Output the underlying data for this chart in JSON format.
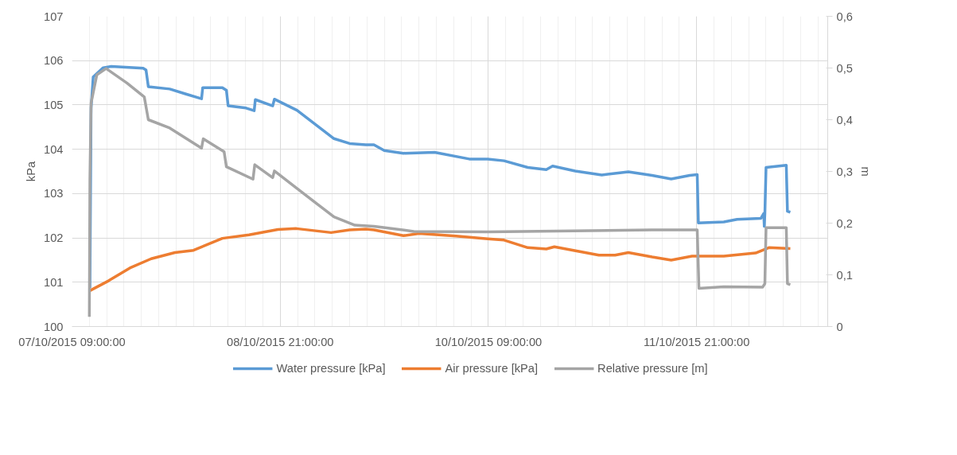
{
  "chart_data": {
    "type": "line",
    "ylabel": "kPa",
    "y2label": "m",
    "grid": true,
    "legend": "bottom",
    "line_style": "solid",
    "marker": "none",
    "xlim": [
      "2015-10-07T09:00",
      "2015-10-12T19:40"
    ],
    "xticks": [
      {
        "value": "2015-10-07T09:00",
        "label": "07/10/2015 09:00:00"
      },
      {
        "value": "2015-10-07T12:00",
        "label": null
      },
      {
        "value": "2015-10-07T15:00",
        "label": null
      },
      {
        "value": "2015-10-07T18:00",
        "label": null
      },
      {
        "value": "2015-10-07T21:00",
        "label": null
      },
      {
        "value": "2015-10-08T00:00",
        "label": null
      },
      {
        "value": "2015-10-08T03:00",
        "label": null
      },
      {
        "value": "2015-10-08T06:00",
        "label": null
      },
      {
        "value": "2015-10-08T09:00",
        "label": null
      },
      {
        "value": "2015-10-08T12:00",
        "label": null
      },
      {
        "value": "2015-10-08T15:00",
        "label": null
      },
      {
        "value": "2015-10-08T18:00",
        "label": null
      },
      {
        "value": "2015-10-08T21:00",
        "label": "08/10/2015 21:00:00"
      },
      {
        "value": "2015-10-09T00:00",
        "label": null
      },
      {
        "value": "2015-10-09T03:00",
        "label": null
      },
      {
        "value": "2015-10-09T06:00",
        "label": null
      },
      {
        "value": "2015-10-09T09:00",
        "label": null
      },
      {
        "value": "2015-10-09T12:00",
        "label": null
      },
      {
        "value": "2015-10-09T15:00",
        "label": null
      },
      {
        "value": "2015-10-09T18:00",
        "label": null
      },
      {
        "value": "2015-10-09T21:00",
        "label": null
      },
      {
        "value": "2015-10-10T00:00",
        "label": null
      },
      {
        "value": "2015-10-10T03:00",
        "label": null
      },
      {
        "value": "2015-10-10T06:00",
        "label": null
      },
      {
        "value": "2015-10-10T09:00",
        "label": "10/10/2015 09:00:00"
      },
      {
        "value": "2015-10-10T12:00",
        "label": null
      },
      {
        "value": "2015-10-10T15:00",
        "label": null
      },
      {
        "value": "2015-10-10T18:00",
        "label": null
      },
      {
        "value": "2015-10-10T21:00",
        "label": null
      },
      {
        "value": "2015-10-11T00:00",
        "label": null
      },
      {
        "value": "2015-10-11T03:00",
        "label": null
      },
      {
        "value": "2015-10-11T06:00",
        "label": null
      },
      {
        "value": "2015-10-11T09:00",
        "label": null
      },
      {
        "value": "2015-10-11T12:00",
        "label": null
      },
      {
        "value": "2015-10-11T15:00",
        "label": null
      },
      {
        "value": "2015-10-11T18:00",
        "label": null
      },
      {
        "value": "2015-10-11T21:00",
        "label": "11/10/2015 21:00:00"
      },
      {
        "value": "2015-10-12T00:00",
        "label": null
      },
      {
        "value": "2015-10-12T03:00",
        "label": null
      },
      {
        "value": "2015-10-12T06:00",
        "label": null
      },
      {
        "value": "2015-10-12T09:00",
        "label": null
      },
      {
        "value": "2015-10-12T12:00",
        "label": null
      },
      {
        "value": "2015-10-12T15:00",
        "label": null
      },
      {
        "value": "2015-10-12T18:00",
        "label": null
      }
    ],
    "ylim": [
      100,
      107
    ],
    "yticks": [
      100,
      101,
      102,
      103,
      104,
      105,
      106,
      107
    ],
    "y2lim": [
      0,
      0.6
    ],
    "y2ticks": [
      0,
      {
        "value": 0.1,
        "label": "0,1"
      },
      {
        "value": 0.2,
        "label": "0,2"
      },
      {
        "value": 0.3,
        "label": "0,3"
      },
      {
        "value": 0.4,
        "label": "0,4"
      },
      {
        "value": 0.5,
        "label": "0,5"
      },
      {
        "value": 0.6,
        "label": "0,6"
      }
    ],
    "series": [
      {
        "name": "Water pressure [kPa]",
        "color": "#5b9bd5",
        "x": [
          "2015-10-07T12:06",
          "2015-10-07T12:18",
          "2015-10-07T12:40",
          "2015-10-07T14:24",
          "2015-10-07T15:48",
          "2015-10-07T21:18",
          "2015-10-07T21:48",
          "2015-10-07T22:12",
          "2015-10-08T01:54",
          "2015-10-08T04:36",
          "2015-10-08T07:24",
          "2015-10-08T07:36",
          "2015-10-08T11:00",
          "2015-10-08T11:42",
          "2015-10-08T12:00",
          "2015-10-08T15:06",
          "2015-10-08T16:30",
          "2015-10-08T16:42",
          "2015-10-08T19:42",
          "2015-10-08T20:00",
          "2015-10-08T23:54",
          "2015-10-09T06:18",
          "2015-10-09T09:00",
          "2015-10-09T11:48",
          "2015-10-09T13:12",
          "2015-10-09T15:00",
          "2015-10-09T18:18",
          "2015-10-09T23:42",
          "2015-10-10T05:42",
          "2015-10-10T08:54",
          "2015-10-10T11:42",
          "2015-10-10T15:48",
          "2015-10-10T19:00",
          "2015-10-10T20:06",
          "2015-10-11T00:00",
          "2015-10-11T04:36",
          "2015-10-11T09:12",
          "2015-10-11T13:18",
          "2015-10-11T16:36",
          "2015-10-11T19:48",
          "2015-10-11T21:06",
          "2015-10-11T21:18",
          "2015-10-12T01:42",
          "2015-10-12T04:00",
          "2015-10-12T08:06",
          "2015-10-12T08:36",
          "2015-10-12T08:42",
          "2015-10-12T08:48",
          "2015-10-12T09:00",
          "2015-10-12T12:30",
          "2015-10-12T12:42",
          "2015-10-12T13:12"
        ],
        "values": [
          100.87,
          104.93,
          105.63,
          105.84,
          105.87,
          105.83,
          105.79,
          105.41,
          105.36,
          105.25,
          105.14,
          105.39,
          105.39,
          105.33,
          104.98,
          104.93,
          104.87,
          105.12,
          104.98,
          105.13,
          104.88,
          104.24,
          104.13,
          104.1,
          104.1,
          103.97,
          103.91,
          103.93,
          103.78,
          103.78,
          103.74,
          103.59,
          103.54,
          103.62,
          103.51,
          103.42,
          103.49,
          103.41,
          103.33,
          103.41,
          103.43,
          102.34,
          102.36,
          102.42,
          102.44,
          102.55,
          102.26,
          102.55,
          103.59,
          103.64,
          102.6,
          102.58
        ]
      },
      {
        "name": "Air pressure [kPa]",
        "color": "#ed7d31",
        "x": [
          "2015-10-07T12:06",
          "2015-10-07T15:18",
          "2015-10-07T19:00",
          "2015-10-07T22:42",
          "2015-10-08T02:48",
          "2015-10-08T06:00",
          "2015-10-08T11:00",
          "2015-10-08T15:36",
          "2015-10-08T20:36",
          "2015-10-08T23:48",
          "2015-10-09T05:48",
          "2015-10-09T09:00",
          "2015-10-09T11:48",
          "2015-10-09T13:12",
          "2015-10-09T18:18",
          "2015-10-09T21:00",
          "2015-10-10T03:24",
          "2015-10-10T08:54",
          "2015-10-10T11:42",
          "2015-10-10T15:48",
          "2015-10-10T19:00",
          "2015-10-10T20:24",
          "2015-10-11T04:06",
          "2015-10-11T06:54",
          "2015-10-11T09:12",
          "2015-10-11T13:18",
          "2015-10-11T16:36",
          "2015-10-11T20:12",
          "2015-10-12T01:42",
          "2015-10-12T07:12",
          "2015-10-12T09:30",
          "2015-10-12T13:12"
        ],
        "values": [
          100.81,
          101.03,
          101.32,
          101.53,
          101.67,
          101.72,
          101.99,
          102.07,
          102.19,
          102.21,
          102.12,
          102.18,
          102.2,
          102.18,
          102.05,
          102.1,
          102.04,
          101.98,
          101.95,
          101.78,
          101.75,
          101.8,
          101.61,
          101.61,
          101.67,
          101.57,
          101.5,
          101.59,
          101.59,
          101.66,
          101.78,
          101.76
        ]
      },
      {
        "name": "Relative pressure [m]",
        "color": "#a5a5a5",
        "axis": "y2",
        "x": [
          "2015-10-07T12:00",
          "2015-10-07T12:06",
          "2015-10-07T12:18",
          "2015-10-07T13:18",
          "2015-10-07T14:54",
          "2015-10-07T18:30",
          "2015-10-07T21:30",
          "2015-10-07T22:12",
          "2015-10-08T01:54",
          "2015-10-08T07:24",
          "2015-10-08T07:42",
          "2015-10-08T11:18",
          "2015-10-08T11:42",
          "2015-10-08T16:18",
          "2015-10-08T16:36",
          "2015-10-08T19:42",
          "2015-10-08T20:00",
          "2015-10-08T23:54",
          "2015-10-09T06:18",
          "2015-10-09T09:54",
          "2015-10-09T13:12",
          "2015-10-09T20:06",
          "2015-10-10T08:54",
          "2015-10-11T13:18",
          "2015-10-11T21:06",
          "2015-10-11T21:24",
          "2015-10-12T01:42",
          "2015-10-12T08:24",
          "2015-10-12T08:48",
          "2015-10-12T09:00",
          "2015-10-12T12:30",
          "2015-10-12T12:42",
          "2015-10-12T13:12"
        ],
        "values": [
          0.019,
          0.285,
          0.432,
          0.487,
          0.499,
          0.471,
          0.444,
          0.4,
          0.384,
          0.345,
          0.363,
          0.338,
          0.309,
          0.285,
          0.313,
          0.288,
          0.301,
          0.267,
          0.212,
          0.196,
          0.194,
          0.184,
          0.183,
          0.187,
          0.187,
          0.074,
          0.077,
          0.076,
          0.083,
          0.191,
          0.191,
          0.083,
          0.081
        ]
      }
    ]
  }
}
